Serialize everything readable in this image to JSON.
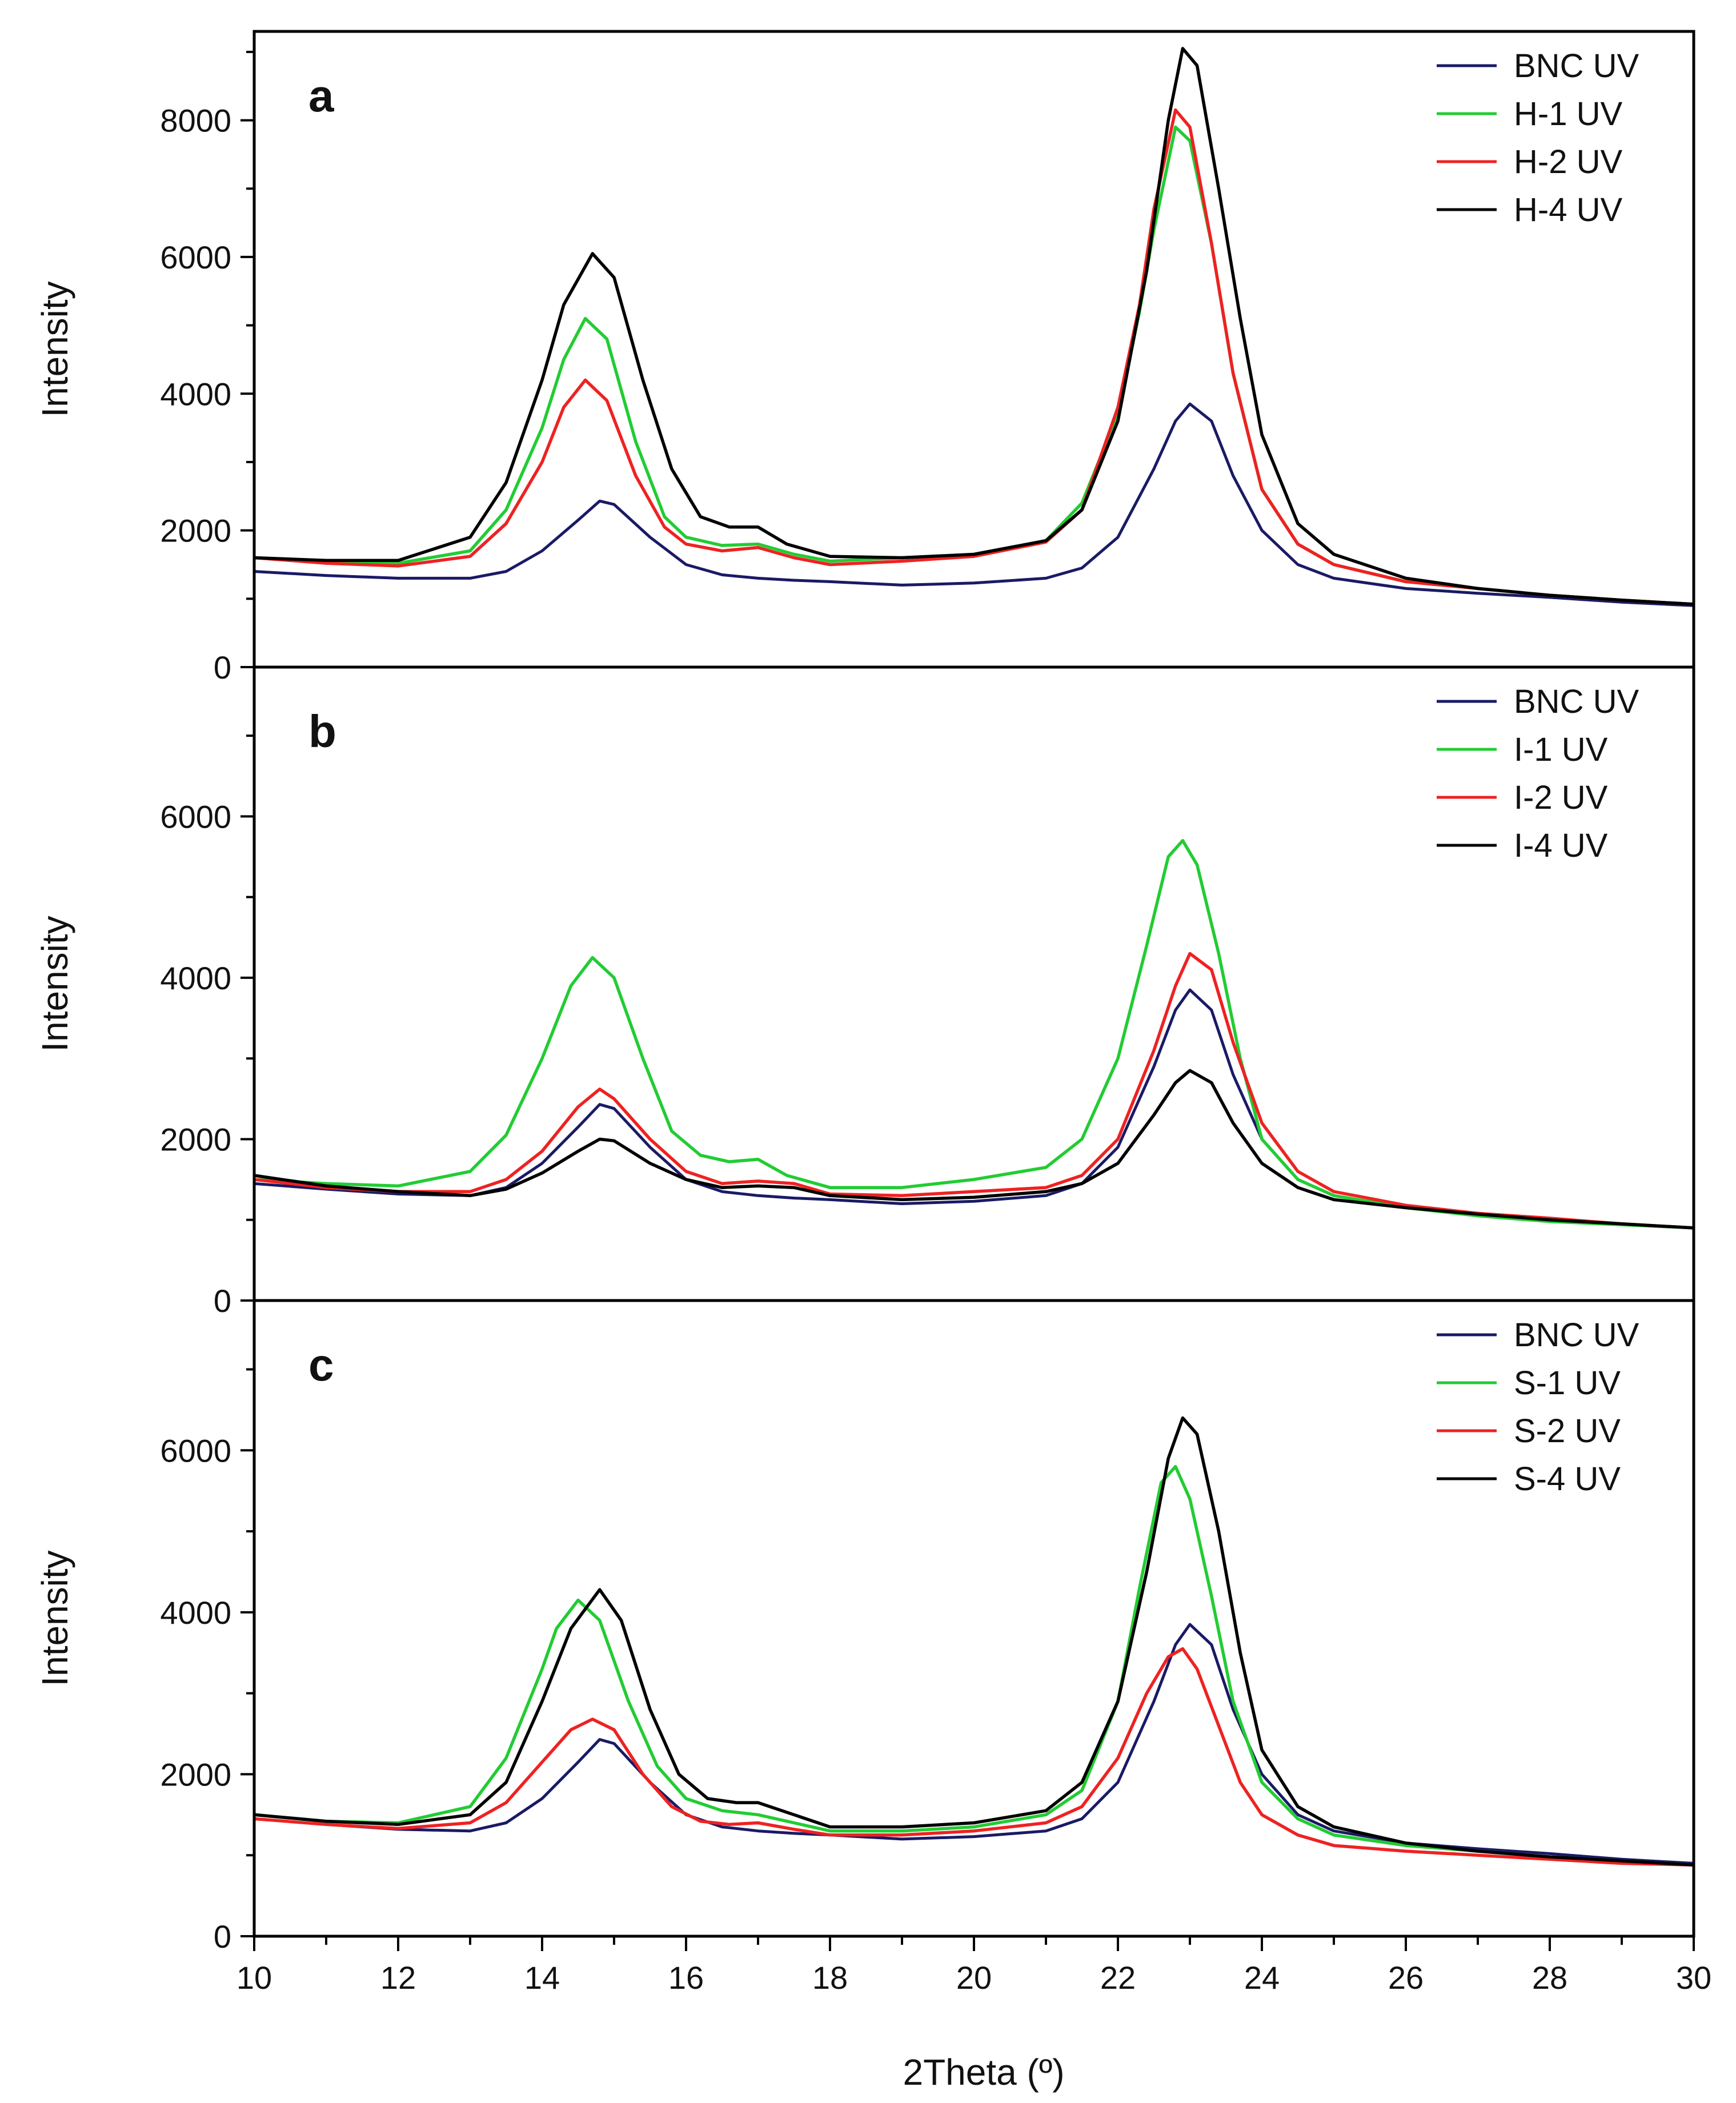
{
  "chart_data": [
    {
      "type": "line",
      "panel_label": "a",
      "ylabel": "Intensity",
      "xlim": [
        10,
        30
      ],
      "ylim": [
        0,
        9300
      ],
      "yticks": [
        0,
        2000,
        4000,
        6000,
        8000
      ],
      "legend_position": "top-right",
      "series": [
        {
          "name": "BNC UV",
          "color": "#1a1a66",
          "x": [
            10,
            11,
            12,
            13,
            13.5,
            14,
            14.5,
            14.8,
            15,
            15.5,
            16,
            16.5,
            17,
            17.5,
            18,
            19,
            20,
            21,
            21.5,
            22,
            22.5,
            22.8,
            23,
            23.3,
            23.6,
            24,
            24.5,
            25,
            26,
            27,
            28,
            29,
            30
          ],
          "y": [
            1400,
            1340,
            1300,
            1300,
            1400,
            1700,
            2150,
            2430,
            2380,
            1900,
            1500,
            1350,
            1300,
            1270,
            1250,
            1200,
            1230,
            1300,
            1450,
            1900,
            2900,
            3600,
            3850,
            3600,
            2800,
            2000,
            1500,
            1300,
            1150,
            1080,
            1020,
            950,
            900
          ]
        },
        {
          "name": "H-1 UV",
          "color": "#22cc33",
          "x": [
            10,
            11,
            12,
            13,
            13.5,
            14,
            14.3,
            14.6,
            14.9,
            15.3,
            15.7,
            16,
            16.5,
            17,
            17.5,
            18,
            19,
            20,
            21,
            21.5,
            22,
            22.3,
            22.5,
            22.8,
            23,
            23.3,
            23.6,
            24,
            24.5,
            25,
            26,
            27,
            28,
            29,
            30
          ],
          "y": [
            1600,
            1550,
            1520,
            1700,
            2300,
            3500,
            4500,
            5100,
            4800,
            3300,
            2200,
            1900,
            1780,
            1800,
            1650,
            1550,
            1600,
            1650,
            1850,
            2400,
            3700,
            5200,
            6400,
            7900,
            7700,
            6200,
            4300,
            2600,
            1800,
            1500,
            1250,
            1150,
            1050,
            980,
            920
          ]
        },
        {
          "name": "H-2 UV",
          "color": "#ee2222",
          "x": [
            10,
            11,
            12,
            13,
            13.5,
            14,
            14.3,
            14.6,
            14.9,
            15.3,
            15.7,
            16,
            16.5,
            17,
            17.5,
            18,
            19,
            20,
            21,
            21.5,
            22,
            22.3,
            22.5,
            22.8,
            23,
            23.3,
            23.6,
            24,
            24.5,
            25,
            26,
            27,
            28,
            29,
            30
          ],
          "y": [
            1600,
            1520,
            1480,
            1620,
            2100,
            3000,
            3800,
            4200,
            3900,
            2800,
            2050,
            1800,
            1700,
            1750,
            1600,
            1500,
            1550,
            1620,
            1830,
            2300,
            3800,
            5300,
            6700,
            8150,
            7900,
            6200,
            4300,
            2600,
            1800,
            1500,
            1250,
            1150,
            1050,
            980,
            920
          ]
        },
        {
          "name": "H-4 UV",
          "color": "#000000",
          "x": [
            10,
            11,
            12,
            13,
            13.5,
            14,
            14.3,
            14.7,
            15,
            15.4,
            15.8,
            16.2,
            16.6,
            17,
            17.4,
            18,
            19,
            20,
            21,
            21.5,
            22,
            22.4,
            22.7,
            22.9,
            23.1,
            23.4,
            23.7,
            24,
            24.5,
            25,
            26,
            27,
            28,
            29,
            30
          ],
          "y": [
            1600,
            1560,
            1560,
            1900,
            2700,
            4200,
            5300,
            6050,
            5700,
            4200,
            2900,
            2200,
            2050,
            2050,
            1800,
            1620,
            1600,
            1650,
            1850,
            2300,
            3600,
            5800,
            8000,
            9050,
            8800,
            7000,
            5100,
            3400,
            2100,
            1650,
            1300,
            1150,
            1050,
            980,
            920
          ]
        }
      ]
    },
    {
      "type": "line",
      "panel_label": "b",
      "ylabel": "Intensity",
      "xlim": [
        10,
        30
      ],
      "ylim": [
        0,
        7850
      ],
      "yticks": [
        0,
        2000,
        4000,
        6000
      ],
      "legend_position": "top-right",
      "series": [
        {
          "name": "BNC UV",
          "color": "#1a1a66",
          "x": [
            10,
            11,
            12,
            13,
            13.5,
            14,
            14.5,
            14.8,
            15,
            15.5,
            16,
            16.5,
            17,
            17.5,
            18,
            19,
            20,
            21,
            21.5,
            22,
            22.5,
            22.8,
            23,
            23.3,
            23.6,
            24,
            24.5,
            25,
            26,
            27,
            28,
            29,
            30
          ],
          "y": [
            1450,
            1380,
            1320,
            1300,
            1400,
            1700,
            2150,
            2430,
            2380,
            1900,
            1500,
            1350,
            1300,
            1270,
            1250,
            1200,
            1230,
            1300,
            1450,
            1900,
            2900,
            3600,
            3850,
            3600,
            2800,
            2000,
            1500,
            1300,
            1150,
            1080,
            1020,
            950,
            900
          ]
        },
        {
          "name": "I-1 UV",
          "color": "#22cc33",
          "x": [
            10,
            11,
            12,
            13,
            13.5,
            14,
            14.4,
            14.7,
            15,
            15.4,
            15.8,
            16.2,
            16.6,
            17,
            17.4,
            18,
            19,
            20,
            21,
            21.5,
            22,
            22.4,
            22.7,
            22.9,
            23.1,
            23.4,
            23.7,
            24,
            24.5,
            25,
            26,
            27,
            28,
            29,
            30
          ],
          "y": [
            1500,
            1450,
            1420,
            1600,
            2050,
            3000,
            3900,
            4250,
            4000,
            3000,
            2100,
            1800,
            1720,
            1750,
            1550,
            1400,
            1400,
            1500,
            1650,
            2000,
            3000,
            4400,
            5500,
            5700,
            5400,
            4300,
            3000,
            2000,
            1500,
            1300,
            1150,
            1050,
            980,
            940,
            900
          ]
        },
        {
          "name": "I-2 UV",
          "color": "#ee2222",
          "x": [
            10,
            11,
            12,
            13,
            13.5,
            14,
            14.5,
            14.8,
            15,
            15.5,
            16,
            16.5,
            17,
            17.5,
            18,
            19,
            20,
            21,
            21.5,
            22,
            22.5,
            22.8,
            23,
            23.3,
            23.6,
            24,
            24.5,
            25,
            26,
            27,
            28,
            29,
            30
          ],
          "y": [
            1500,
            1400,
            1350,
            1350,
            1500,
            1850,
            2400,
            2620,
            2500,
            2000,
            1600,
            1450,
            1480,
            1450,
            1320,
            1300,
            1350,
            1400,
            1550,
            2000,
            3100,
            3900,
            4300,
            4100,
            3200,
            2200,
            1600,
            1350,
            1180,
            1080,
            1020,
            950,
            900
          ]
        },
        {
          "name": "I-4 UV",
          "color": "#000000",
          "x": [
            10,
            11,
            12,
            13,
            13.5,
            14,
            14.5,
            14.8,
            15,
            15.5,
            16,
            16.5,
            17,
            17.5,
            18,
            19,
            20,
            21,
            21.5,
            22,
            22.5,
            22.8,
            23,
            23.3,
            23.6,
            24,
            24.5,
            25,
            26,
            27,
            28,
            29,
            30
          ],
          "y": [
            1550,
            1420,
            1350,
            1300,
            1380,
            1580,
            1850,
            2000,
            1980,
            1700,
            1500,
            1400,
            1420,
            1400,
            1300,
            1250,
            1280,
            1350,
            1450,
            1700,
            2300,
            2700,
            2850,
            2700,
            2200,
            1700,
            1400,
            1250,
            1150,
            1070,
            1000,
            950,
            900
          ]
        }
      ]
    },
    {
      "type": "line",
      "panel_label": "c",
      "ylabel": "Intensity",
      "xlim": [
        10,
        30
      ],
      "ylim": [
        0,
        7850
      ],
      "yticks": [
        0,
        2000,
        4000,
        6000
      ],
      "legend_position": "top-right",
      "series": [
        {
          "name": "BNC UV",
          "color": "#1a1a66",
          "x": [
            10,
            11,
            12,
            13,
            13.5,
            14,
            14.5,
            14.8,
            15,
            15.5,
            16,
            16.5,
            17,
            17.5,
            18,
            19,
            20,
            21,
            21.5,
            22,
            22.5,
            22.8,
            23,
            23.3,
            23.6,
            24,
            24.5,
            25,
            26,
            27,
            28,
            29,
            30
          ],
          "y": [
            1450,
            1380,
            1320,
            1300,
            1400,
            1700,
            2150,
            2430,
            2380,
            1900,
            1500,
            1350,
            1300,
            1270,
            1250,
            1200,
            1230,
            1300,
            1450,
            1900,
            2900,
            3600,
            3850,
            3600,
            2800,
            2000,
            1500,
            1300,
            1150,
            1080,
            1020,
            950,
            900
          ]
        },
        {
          "name": "S-1 UV",
          "color": "#22cc33",
          "x": [
            10,
            11,
            12,
            13,
            13.5,
            14,
            14.2,
            14.5,
            14.8,
            15.2,
            15.6,
            16,
            16.5,
            17,
            17.5,
            18,
            19,
            20,
            21,
            21.5,
            22,
            22.3,
            22.6,
            22.8,
            23,
            23.3,
            23.6,
            24,
            24.5,
            25,
            26,
            27,
            28,
            29,
            30
          ],
          "y": [
            1500,
            1420,
            1400,
            1600,
            2200,
            3300,
            3800,
            4150,
            3900,
            2900,
            2100,
            1700,
            1550,
            1500,
            1400,
            1300,
            1300,
            1350,
            1500,
            1800,
            2900,
            4300,
            5600,
            5800,
            5400,
            4200,
            2900,
            1900,
            1450,
            1250,
            1120,
            1050,
            980,
            930,
            880
          ]
        },
        {
          "name": "S-2 UV",
          "color": "#ee2222",
          "x": [
            10,
            11,
            12,
            13,
            13.5,
            14,
            14.4,
            14.7,
            15,
            15.4,
            15.8,
            16.2,
            16.6,
            17,
            17.5,
            18,
            19,
            20,
            21,
            21.5,
            22,
            22.4,
            22.7,
            22.9,
            23.1,
            23.4,
            23.7,
            24,
            24.5,
            25,
            26,
            27,
            28,
            29,
            30
          ],
          "y": [
            1450,
            1380,
            1330,
            1400,
            1650,
            2150,
            2550,
            2680,
            2550,
            2000,
            1600,
            1420,
            1380,
            1400,
            1320,
            1250,
            1250,
            1300,
            1400,
            1600,
            2200,
            3000,
            3450,
            3550,
            3300,
            2600,
            1900,
            1500,
            1250,
            1120,
            1050,
            1000,
            950,
            900,
            880
          ]
        },
        {
          "name": "S-4 UV",
          "color": "#000000",
          "x": [
            10,
            11,
            12,
            13,
            13.5,
            14,
            14.4,
            14.8,
            15.1,
            15.5,
            15.9,
            16.3,
            16.7,
            17,
            17.5,
            18,
            19,
            20,
            21,
            21.5,
            22,
            22.4,
            22.7,
            22.9,
            23.1,
            23.4,
            23.7,
            24,
            24.5,
            25,
            26,
            27,
            28,
            29,
            30
          ],
          "y": [
            1500,
            1420,
            1380,
            1500,
            1900,
            2900,
            3800,
            4280,
            3900,
            2800,
            2000,
            1700,
            1650,
            1650,
            1500,
            1350,
            1350,
            1400,
            1550,
            1900,
            2900,
            4500,
            5900,
            6400,
            6200,
            5000,
            3500,
            2300,
            1600,
            1350,
            1150,
            1050,
            980,
            930,
            880
          ]
        }
      ]
    }
  ],
  "xaxis": {
    "label": "2Theta (º)",
    "ticks": [
      10,
      12,
      14,
      16,
      18,
      20,
      22,
      24,
      26,
      28,
      30
    ]
  }
}
